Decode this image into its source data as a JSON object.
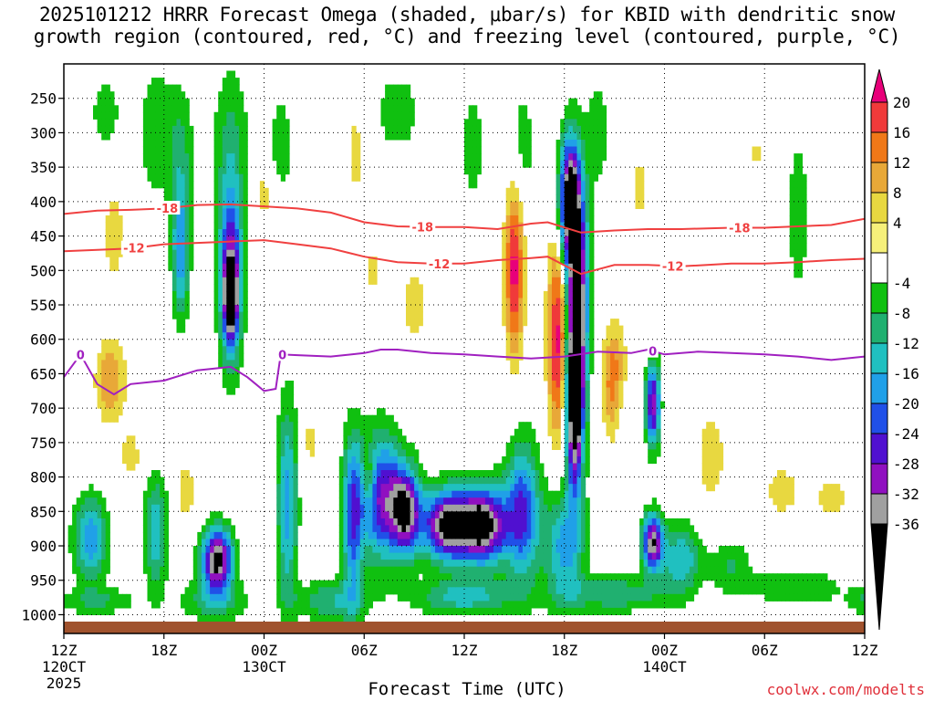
{
  "title_line1": "2025101212 HRRR Forecast Omega (shaded, μbar/s) for KBID with dendritic snow",
  "title_line2": "growth region (contoured, red, °C) and freezing level (contoured, purple, °C)",
  "xlabel": "Forecast Time (UTC)",
  "credit": "coolwx.com/modelts",
  "colors": {
    "dgz_contour": "#f04040",
    "freezing_contour": "#a020c0",
    "ground": "#a0522d"
  },
  "chart_data": {
    "type": "heatmap",
    "y_axis": {
      "label": "",
      "ticks": [
        250,
        300,
        350,
        400,
        450,
        500,
        550,
        600,
        650,
        700,
        750,
        800,
        850,
        900,
        950,
        1000
      ],
      "ylim": [
        200,
        1010
      ],
      "reversed": true
    },
    "x_axis": {
      "ticks": [
        {
          "label": "12Z",
          "sub": [
            "120CT",
            "2025"
          ],
          "hour": 0
        },
        {
          "label": "18Z",
          "sub": [],
          "hour": 6
        },
        {
          "label": "00Z",
          "sub": [
            "130CT"
          ],
          "hour": 12
        },
        {
          "label": "06Z",
          "sub": [],
          "hour": 18
        },
        {
          "label": "12Z",
          "sub": [],
          "hour": 24
        },
        {
          "label": "18Z",
          "sub": [],
          "hour": 30
        },
        {
          "label": "00Z",
          "sub": [
            "140CT"
          ],
          "hour": 36
        },
        {
          "label": "06Z",
          "sub": [],
          "hour": 42
        },
        {
          "label": "12Z",
          "sub": [],
          "hour": 48
        }
      ],
      "xlim": [
        0,
        48
      ]
    },
    "grid": true,
    "colorbar": {
      "labels": [
        "20",
        "16",
        "12",
        "8",
        "4",
        "-4",
        "-8",
        "-12",
        "-16",
        "-20",
        "-24",
        "-28",
        "-32",
        "-36"
      ],
      "bins": [
        {
          "color": "#e8007a"
        },
        {
          "color": "#f03a3a"
        },
        {
          "color": "#f07818"
        },
        {
          "color": "#e8a838"
        },
        {
          "color": "#e8d840"
        },
        {
          "color": "#f6f07a"
        },
        {
          "color": "#ffffff"
        },
        {
          "color": "#10c010"
        },
        {
          "color": "#20b070"
        },
        {
          "color": "#20c0c0"
        },
        {
          "color": "#20a0e8"
        },
        {
          "color": "#2050e8"
        },
        {
          "color": "#5010d0"
        },
        {
          "color": "#9010c0"
        },
        {
          "color": "#a0a0a0"
        },
        {
          "color": "#000000"
        }
      ]
    },
    "contours": [
      {
        "label": "-18",
        "color": "#f04040",
        "points": [
          [
            0,
            418
          ],
          [
            2,
            413
          ],
          [
            4,
            412
          ],
          [
            6,
            410
          ],
          [
            8,
            405
          ],
          [
            10,
            404
          ],
          [
            12,
            407
          ],
          [
            14,
            410
          ],
          [
            16,
            416
          ],
          [
            18,
            430
          ],
          [
            20,
            436
          ],
          [
            22,
            437
          ],
          [
            24,
            437
          ],
          [
            26,
            440
          ],
          [
            28,
            432
          ],
          [
            29,
            430
          ],
          [
            31,
            445
          ],
          [
            33,
            442
          ],
          [
            35,
            440
          ],
          [
            37,
            440
          ],
          [
            40,
            438
          ],
          [
            42,
            438
          ],
          [
            44,
            436
          ],
          [
            46,
            434
          ],
          [
            48,
            425
          ]
        ],
        "label_hours": [
          6.2,
          21.5,
          40.5
        ]
      },
      {
        "label": "-12",
        "color": "#f04040",
        "points": [
          [
            0,
            472
          ],
          [
            2,
            470
          ],
          [
            4,
            468
          ],
          [
            6,
            462
          ],
          [
            8,
            460
          ],
          [
            10,
            458
          ],
          [
            12,
            456
          ],
          [
            14,
            462
          ],
          [
            16,
            468
          ],
          [
            18,
            480
          ],
          [
            20,
            488
          ],
          [
            22,
            490
          ],
          [
            24,
            490
          ],
          [
            26,
            485
          ],
          [
            28,
            482
          ],
          [
            29,
            480
          ],
          [
            31,
            505
          ],
          [
            33,
            492
          ],
          [
            35,
            492
          ],
          [
            37,
            494
          ],
          [
            40,
            490
          ],
          [
            42,
            490
          ],
          [
            44,
            488
          ],
          [
            46,
            485
          ],
          [
            48,
            483
          ]
        ],
        "label_hours": [
          4.2,
          22.5,
          36.5
        ]
      },
      {
        "label": "0",
        "color": "#a020c0",
        "points": [
          [
            0,
            655
          ],
          [
            1,
            622
          ],
          [
            2,
            665
          ],
          [
            3,
            680
          ],
          [
            4,
            665
          ],
          [
            6,
            660
          ],
          [
            8,
            645
          ],
          [
            10,
            640
          ],
          [
            11,
            655
          ],
          [
            12,
            675
          ],
          [
            12.7,
            672
          ],
          [
            13,
            622
          ],
          [
            14,
            623
          ],
          [
            16,
            625
          ],
          [
            18,
            620
          ],
          [
            19,
            615
          ],
          [
            20,
            615
          ],
          [
            22,
            620
          ],
          [
            24,
            622
          ],
          [
            26,
            625
          ],
          [
            28,
            628
          ],
          [
            30,
            625
          ],
          [
            32,
            618
          ],
          [
            34,
            620
          ],
          [
            35,
            615
          ],
          [
            36,
            622
          ],
          [
            38,
            618
          ],
          [
            40,
            620
          ],
          [
            42,
            622
          ],
          [
            44,
            625
          ],
          [
            46,
            630
          ],
          [
            48,
            625
          ]
        ],
        "label_hours": [
          1,
          13.1,
          35.3
        ]
      }
    ],
    "regions": [
      {
        "hour": 9,
        "p": 560,
        "intensity": -36,
        "note": "black cells near 00Z 130CT mid-level"
      },
      {
        "hour": 9,
        "p": 920,
        "intensity": -36
      },
      {
        "hour": 23,
        "p": 860,
        "intensity": -36
      },
      {
        "hour": 25,
        "p": 870,
        "intensity": -36
      },
      {
        "hour": 31,
        "p": 500,
        "intensity": -36
      },
      {
        "hour": 30,
        "p": 620,
        "intensity": 20
      },
      {
        "hour": 27,
        "p": 520,
        "intensity": 20
      }
    ]
  }
}
